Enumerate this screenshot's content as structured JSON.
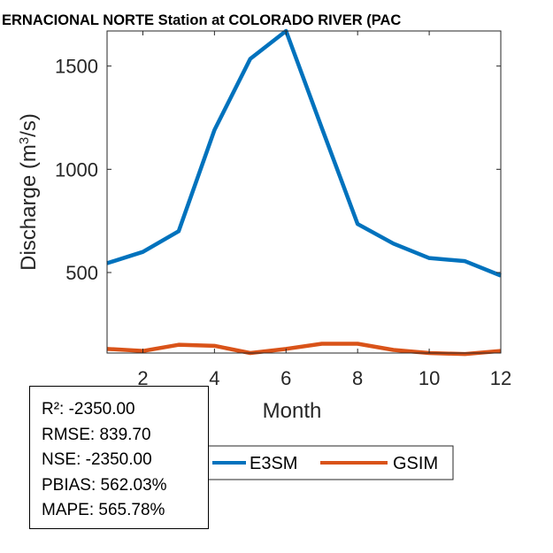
{
  "chart_data": {
    "type": "line",
    "title": "INTERNACIONAL NORTE  Station at  COLORADO RIVER (PACIFIC OCEAN)",
    "title_visible": "ERNACIONAL NORTE  Station at  COLORADO RIVER (PAC",
    "xlabel": "Month",
    "ylabel_main": "Discharge (m",
    "ylabel_sup": "3",
    "ylabel_tail": "/s)",
    "xlim": [
      1,
      12
    ],
    "ylim": [
      110,
      1670
    ],
    "xticks": [
      2,
      4,
      6,
      8,
      10,
      12
    ],
    "yticks": [
      500,
      1000,
      1500
    ],
    "grid": false,
    "legend_placement": "bottom-center",
    "x": [
      1,
      2,
      3,
      4,
      5,
      6,
      7,
      8,
      9,
      10,
      11,
      12
    ],
    "series": [
      {
        "name": "E3SM",
        "color": "#0072BD",
        "values": [
          545,
          600,
          700,
          1190,
          1535,
          1670,
          1200,
          735,
          640,
          570,
          555,
          485
        ]
      },
      {
        "name": "GSIM",
        "color": "#D95319",
        "values": [
          130,
          120,
          150,
          145,
          110,
          130,
          155,
          155,
          125,
          110,
          105,
          120
        ]
      }
    ]
  },
  "stats": {
    "lines": [
      "R²: -2350.00",
      "RMSE: 839.70",
      "NSE: -2350.00",
      "PBIAS: 562.03%",
      "MAPE: 565.78%"
    ]
  }
}
